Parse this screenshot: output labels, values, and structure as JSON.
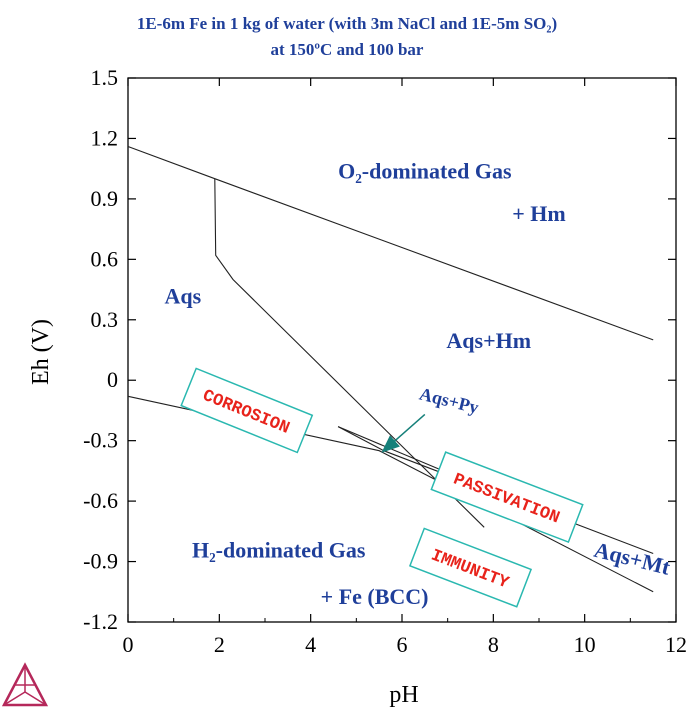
{
  "title_line1": "1E-6m Fe in 1 kg of water (with 3m NaCl and 1E-5m SO₂)",
  "title_line2": "at 150ºC and 100 bar",
  "colors": {
    "title": "#1f3f9a",
    "region_label": "#1f3f9a",
    "box_text": "#e8231b",
    "box_border": "#2ab8b0",
    "arrow": "#16807a",
    "logo": "#b5285a"
  },
  "chart_data": {
    "type": "line",
    "xlabel": "pH",
    "ylabel": "Eh (V)",
    "xlim": [
      0,
      12
    ],
    "ylim": [
      -1.2,
      1.5
    ],
    "x_ticks": [
      0,
      2,
      4,
      6,
      8,
      10,
      12
    ],
    "y_ticks": [
      -1.2,
      -0.9,
      -0.6,
      -0.3,
      0,
      0.3,
      0.6,
      0.9,
      1.2,
      1.5
    ],
    "x_tick_labels": [
      "0",
      "2",
      "4",
      "6",
      "8",
      "10",
      "12"
    ],
    "y_tick_labels": [
      "-1.2",
      "-0.9",
      "-0.6",
      "-0.3",
      "0",
      "0.3",
      "0.6",
      "0.9",
      "1.2",
      "1.5"
    ],
    "grid": false,
    "series": [
      {
        "points": [
          [
            0,
            1.16
          ],
          [
            1.9,
            1.0
          ],
          [
            11.5,
            0.2
          ]
        ]
      },
      {
        "points": [
          [
            0,
            -0.08
          ],
          [
            5.5,
            -0.35
          ],
          [
            11.5,
            -1.05
          ]
        ]
      },
      {
        "points": [
          [
            1.9,
            1.0
          ],
          [
            1.92,
            0.62
          ],
          [
            2.3,
            0.5
          ],
          [
            7.8,
            -0.73
          ]
        ]
      },
      {
        "points": [
          [
            4.6,
            -0.23
          ],
          [
            5.6,
            -0.35
          ],
          [
            11.5,
            -0.86
          ]
        ]
      },
      {
        "points": [
          [
            4.6,
            -0.23
          ],
          [
            6.8,
            -0.44
          ]
        ]
      }
    ],
    "region_labels": [
      {
        "text": "O₂-dominated Gas",
        "x": 6.5,
        "y": 1.0
      },
      {
        "text": "+ Hm",
        "x": 9.0,
        "y": 0.79
      },
      {
        "text": "Aqs",
        "x": 1.2,
        "y": 0.38
      },
      {
        "text": "Aqs+Hm",
        "x": 7.9,
        "y": 0.16
      },
      {
        "text": "Aqs+Py",
        "x": 7.0,
        "y": -0.13
      },
      {
        "text": "H₂-dominated Gas",
        "x": 3.3,
        "y": -0.88
      },
      {
        "text": "+ Fe (BCC)",
        "x": 5.4,
        "y": -1.11
      },
      {
        "text": "Aqs+Mt",
        "x": 11.0,
        "y": -0.92
      }
    ],
    "boxed_labels": [
      {
        "text": "CORROSION",
        "x": 2.6,
        "y": -0.15,
        "angle": 22
      },
      {
        "text": "PASSIVATION",
        "x": 8.3,
        "y": -0.58,
        "angle": 21
      },
      {
        "text": "IMMUNITY",
        "x": 7.5,
        "y": -0.93,
        "angle": 21
      }
    ]
  }
}
